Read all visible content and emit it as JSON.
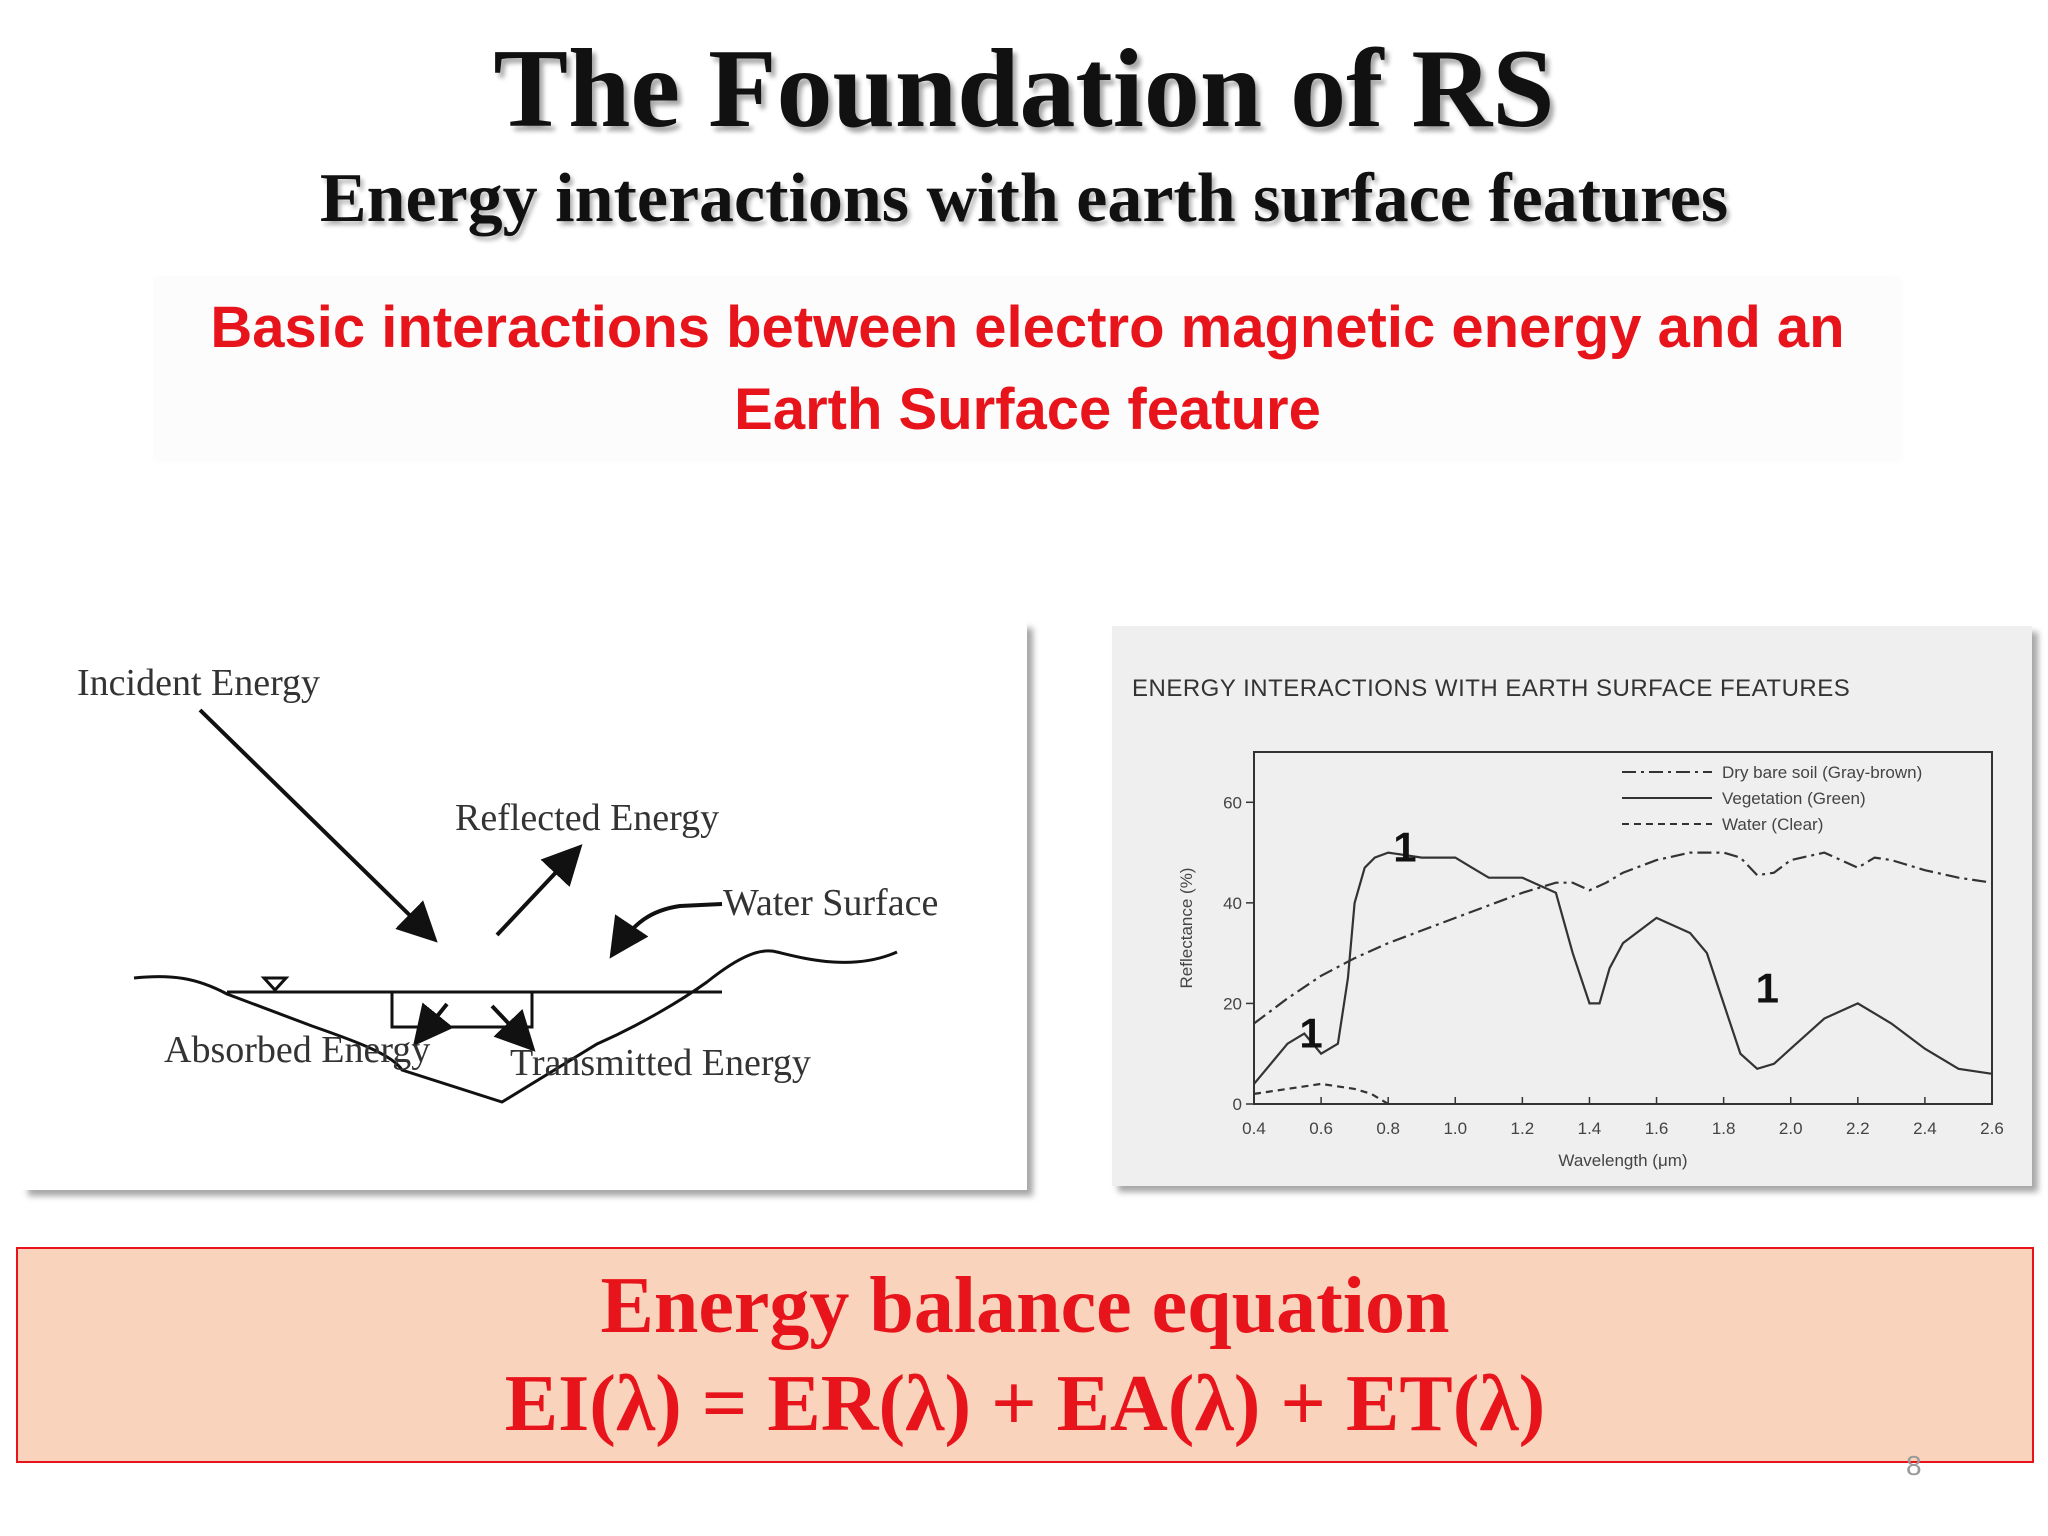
{
  "slide": {
    "title": "The Foundation of RS",
    "subtitle": "Energy interactions with earth surface features",
    "highlight_line1": "Basic interactions between electro magnetic energy and an",
    "highlight_line2": "Earth Surface feature",
    "page_number": "8"
  },
  "diagram": {
    "incident": "Incident Energy",
    "reflected": "Reflected Energy",
    "water_surface": "Water Surface",
    "absorbed": "Absorbed Energy",
    "transmitted": "Transmitted Energy"
  },
  "equation": {
    "heading": "Energy balance equation",
    "formula": "EI(λ) = ER(λ) + EA(λ) + ET(λ)"
  },
  "chart_data": {
    "type": "line",
    "title": "ENERGY INTERACTIONS WITH EARTH SURFACE FEATURES",
    "xlabel": "Wavelength (μm)",
    "ylabel": "Reflectance (%)",
    "xlim": [
      0.4,
      2.6
    ],
    "ylim": [
      0,
      70
    ],
    "x_ticks": [
      "0.4",
      "0.6",
      "0.8",
      "1.0",
      "1.2",
      "1.4",
      "1.6",
      "1.8",
      "2.0",
      "2.2",
      "2.4",
      "2.6"
    ],
    "y_ticks": [
      "0",
      "20",
      "40",
      "60"
    ],
    "legend_position": "top-right",
    "series": [
      {
        "name": "Dry bare soil (Gray-brown)",
        "style": "dash-dot",
        "x": [
          0.4,
          0.5,
          0.6,
          0.7,
          0.8,
          0.9,
          1.0,
          1.1,
          1.2,
          1.3,
          1.35,
          1.4,
          1.45,
          1.5,
          1.6,
          1.7,
          1.8,
          1.85,
          1.9,
          1.95,
          2.0,
          2.1,
          2.2,
          2.25,
          2.3,
          2.4,
          2.5,
          2.6
        ],
        "values": [
          16,
          21,
          25.5,
          29,
          32,
          34.5,
          37,
          39.5,
          42,
          44,
          44,
          42.5,
          44,
          46,
          48.5,
          50,
          50,
          49,
          45.5,
          46,
          48.5,
          50,
          47,
          49,
          48.5,
          46.5,
          45,
          44
        ]
      },
      {
        "name": "Vegetation (Green)",
        "style": "solid",
        "x": [
          0.4,
          0.45,
          0.5,
          0.55,
          0.6,
          0.65,
          0.68,
          0.7,
          0.73,
          0.76,
          0.8,
          0.9,
          1.0,
          1.05,
          1.1,
          1.2,
          1.3,
          1.35,
          1.4,
          1.43,
          1.46,
          1.5,
          1.6,
          1.7,
          1.75,
          1.8,
          1.85,
          1.9,
          1.95,
          2.0,
          2.1,
          2.2,
          2.3,
          2.4,
          2.5,
          2.6
        ],
        "values": [
          4,
          8,
          12,
          14,
          10,
          12,
          25,
          40,
          47,
          49,
          50,
          49,
          49,
          47,
          45,
          45,
          42,
          30,
          20,
          20,
          27,
          32,
          37,
          34,
          30,
          20,
          10,
          7,
          8,
          11,
          17,
          20,
          16,
          11,
          7,
          6
        ]
      },
      {
        "name": "Water (Clear)",
        "style": "dashed",
        "x": [
          0.4,
          0.5,
          0.6,
          0.7,
          0.75,
          0.8
        ],
        "values": [
          2,
          3,
          4,
          3,
          2,
          0
        ]
      }
    ],
    "annotations": [
      {
        "text": "1",
        "x": 0.85,
        "y": 49
      },
      {
        "text": "1",
        "x": 0.57,
        "y": 12
      },
      {
        "text": "1",
        "x": 1.93,
        "y": 21
      }
    ]
  }
}
